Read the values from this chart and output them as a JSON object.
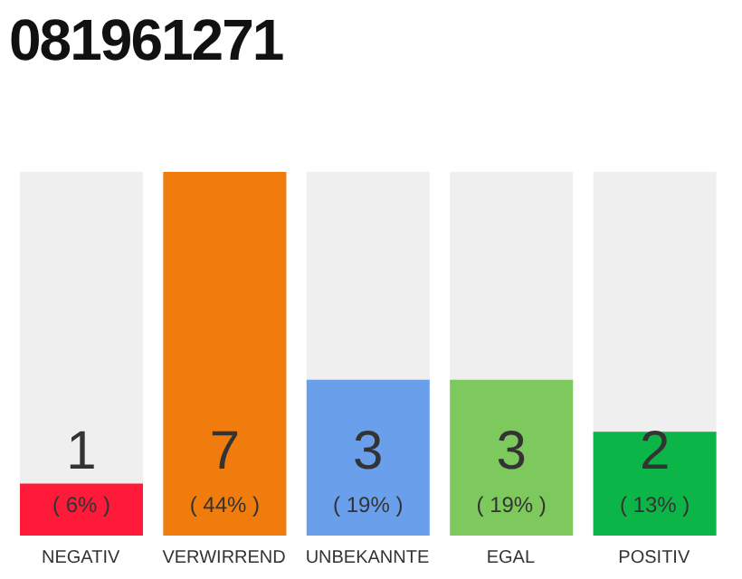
{
  "chart_data": {
    "type": "bar",
    "title": "081961271",
    "categories": [
      "NEGATIV",
      "VERWIRREND",
      "UNBEKANNTE",
      "EGAL",
      "POSITIV"
    ],
    "values": [
      1,
      7,
      3,
      3,
      2
    ],
    "colors": [
      "#ff1a3a",
      "#f07c0e",
      "#6a9fec",
      "#7ec95e",
      "#0bb547"
    ],
    "value_labels": [
      "1\n( 6% )",
      "7\n( 44% )",
      "3\n( 19% )",
      "3\n( 19% )",
      "2\n( 13% )"
    ],
    "grid": false,
    "legend": false
  }
}
